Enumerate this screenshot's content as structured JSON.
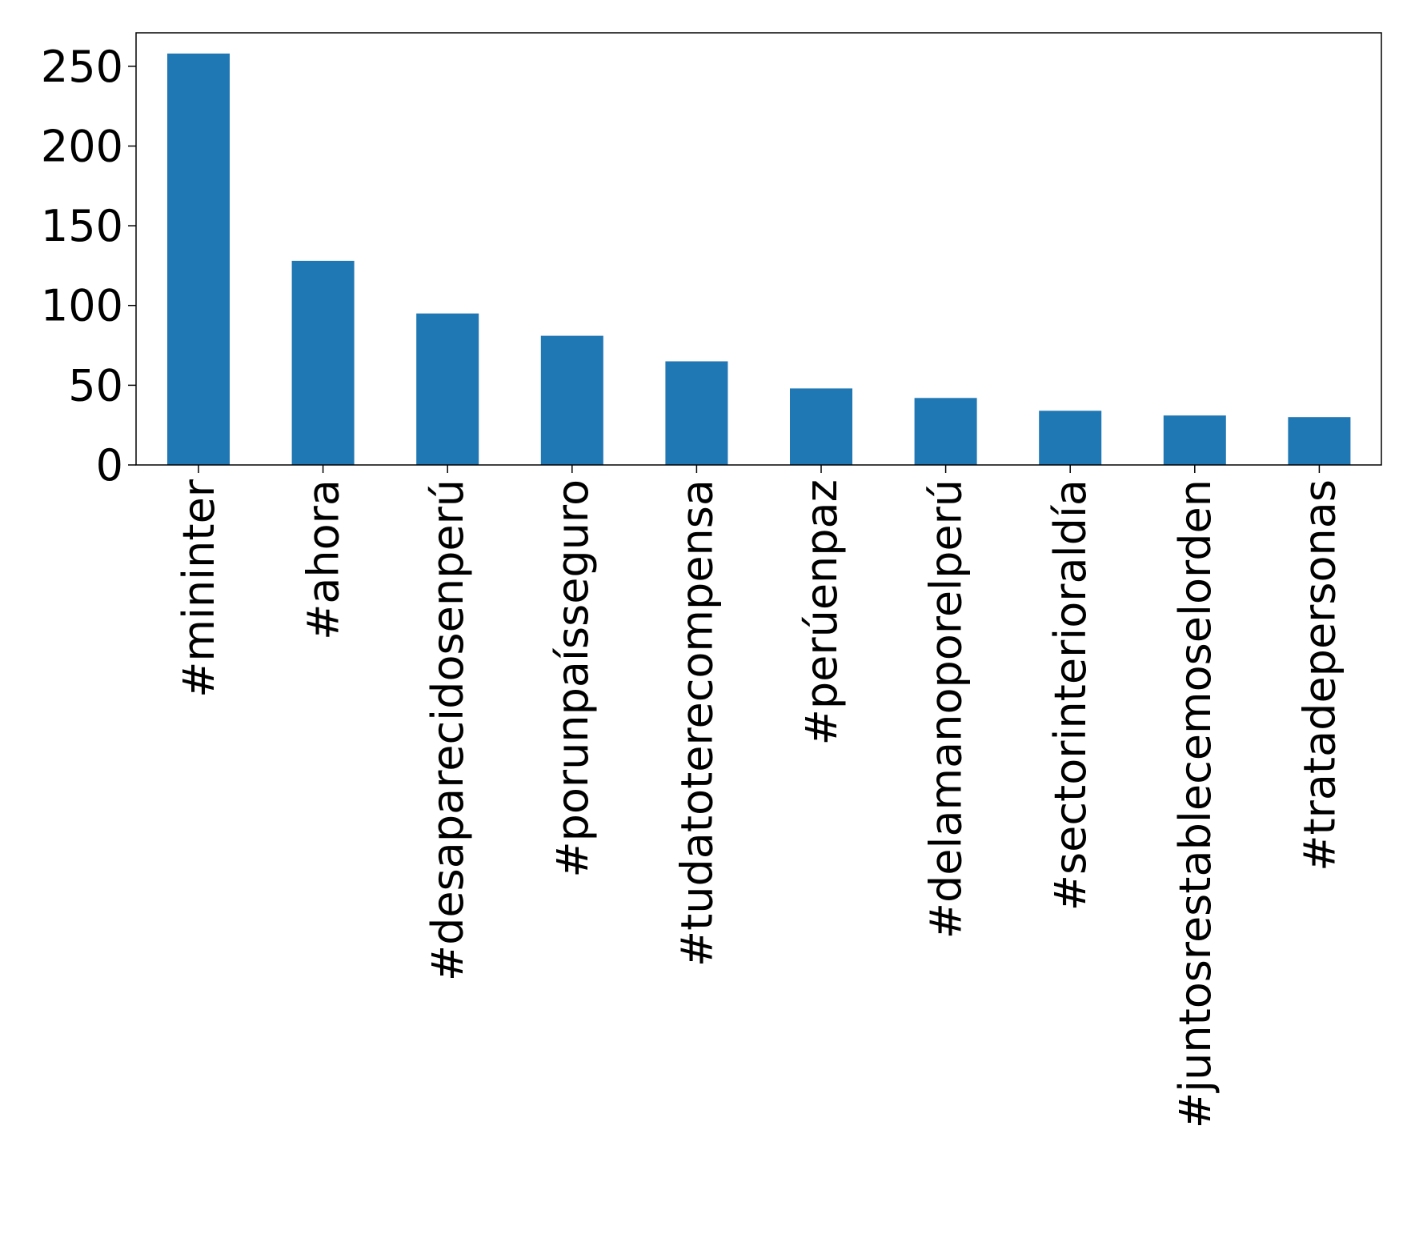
{
  "chart_data": {
    "type": "bar",
    "title": "",
    "xlabel": "",
    "ylabel": "",
    "categories": [
      "#mininter",
      "#ahora",
      "#desaparecidosenperú",
      "#porunpaísseguro",
      "#tudatoterecompensa",
      "#perúenpaz",
      "#delamanoporelperú",
      "#sectorinterioraldía",
      "#juntosrestablecemoselorden",
      "#tratadepersonas"
    ],
    "values": [
      258,
      128,
      95,
      81,
      65,
      48,
      42,
      34,
      31,
      30
    ],
    "ylim": [
      0,
      271
    ],
    "yticks": [
      0,
      50,
      100,
      150,
      200,
      250
    ],
    "ytick_labels": [
      "0",
      "50",
      "100",
      "150",
      "200",
      "250"
    ],
    "grid": false,
    "legend": "none",
    "bar_color": "#1f77b4"
  }
}
